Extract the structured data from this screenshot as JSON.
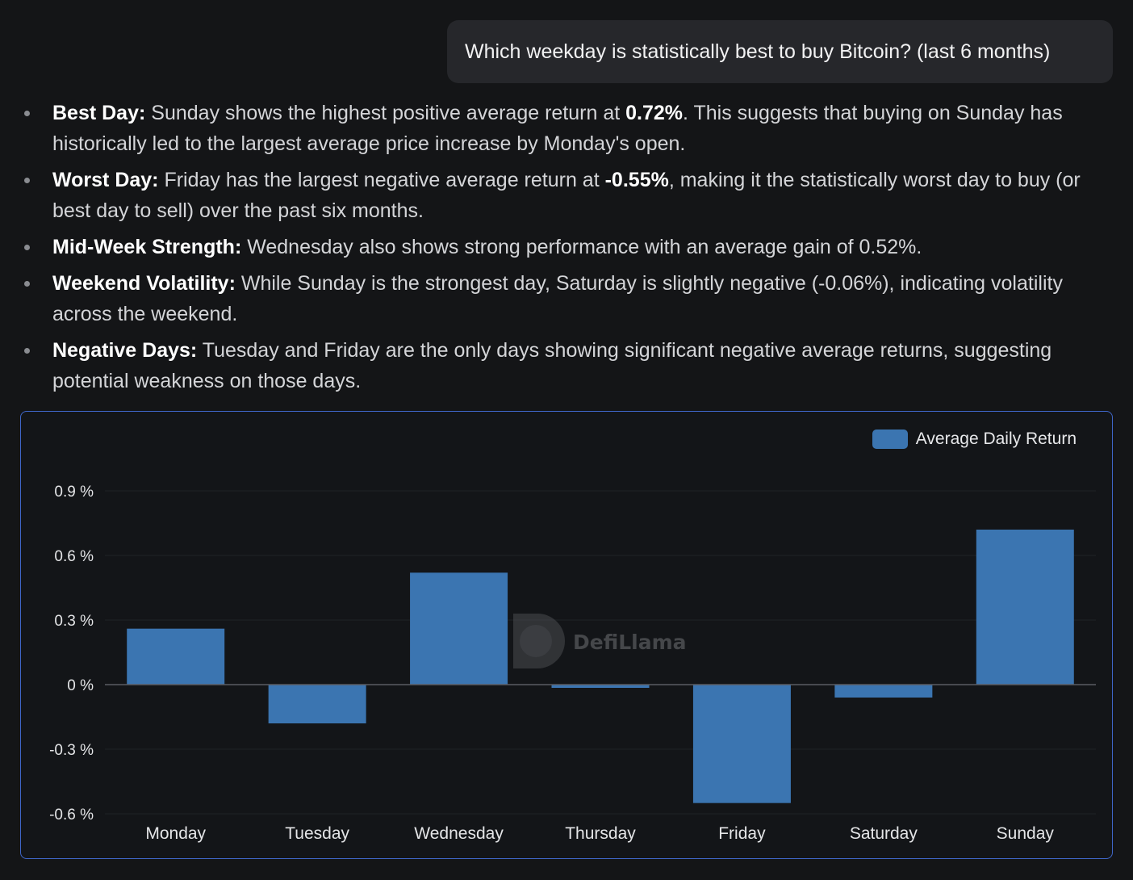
{
  "user_message": "Which weekday is statistically best to buy Bitcoin? (last 6 months)",
  "answer_points": [
    {
      "label": "Best Day:",
      "parts": [
        {
          "text": " Sunday shows the highest positive average return at "
        },
        {
          "text": "0.72%",
          "bold": true
        },
        {
          "text": ". This suggests that buying on Sunday has historically led to the largest average price increase by Monday's open."
        }
      ]
    },
    {
      "label": "Worst Day:",
      "parts": [
        {
          "text": " Friday has the largest negative average return at "
        },
        {
          "text": "-0.55%",
          "bold": true
        },
        {
          "text": ", making it the statistically worst day to buy (or best day to sell) over the past six months."
        }
      ]
    },
    {
      "label": "Mid-Week Strength:",
      "parts": [
        {
          "text": " Wednesday also shows strong performance with an average gain of 0.52%."
        }
      ]
    },
    {
      "label": "Weekend Volatility:",
      "parts": [
        {
          "text": " While Sunday is the strongest day, Saturday is slightly negative (-0.06%), indicating volatility across the weekend."
        }
      ]
    },
    {
      "label": "Negative Days:",
      "parts": [
        {
          "text": " Tuesday and Friday are the only days showing significant negative average returns, suggesting potential weakness on those days."
        }
      ]
    }
  ],
  "watermark": "DefiLlama",
  "chart_data": {
    "type": "bar",
    "categories": [
      "Monday",
      "Tuesday",
      "Wednesday",
      "Thursday",
      "Friday",
      "Saturday",
      "Sunday"
    ],
    "series": [
      {
        "name": "Average Daily Return",
        "values": [
          0.26,
          -0.18,
          0.52,
          -0.015,
          -0.55,
          -0.06,
          0.72
        ],
        "color": "#3b75b1"
      }
    ],
    "yticks": [
      0.9,
      0.6,
      0.3,
      0,
      -0.3,
      -0.6
    ],
    "ytick_labels": [
      "0.9 %",
      "0.6 %",
      "0.3 %",
      "0 %",
      "-0.3 %",
      "-0.6 %"
    ],
    "ylim": [
      -0.6,
      0.9
    ],
    "grid": true,
    "legend_position": "top-right",
    "colors": {
      "bar": "#3b75b1",
      "grid": "#1f2226",
      "zero_line": "#5a5d62"
    }
  }
}
